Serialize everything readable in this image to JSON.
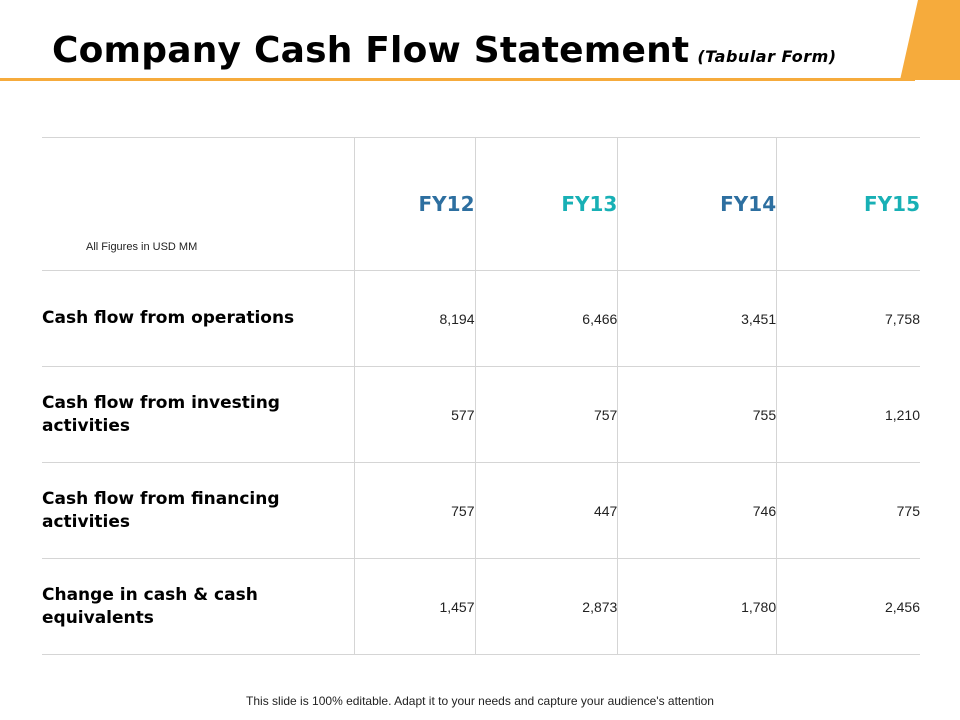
{
  "header": {
    "title": "Company Cash Flow Statement",
    "subtitle": "(Tabular Form)"
  },
  "table": {
    "note": "All Figures in USD MM",
    "columns": [
      "FY12",
      "FY13",
      "FY14",
      "FY15"
    ],
    "rows": [
      {
        "label": "Cash flow from operations",
        "values": [
          "8,194",
          "6,466",
          "3,451",
          "7,758"
        ]
      },
      {
        "label": "Cash flow from investing activities",
        "values": [
          "577",
          "757",
          "755",
          "1,210"
        ]
      },
      {
        "label": "Cash flow from financing activities",
        "values": [
          "757",
          "447",
          "746",
          "775"
        ]
      },
      {
        "label": "Change in cash & cash equivalents",
        "values": [
          "1,457",
          "2,873",
          "1,780",
          "2,456"
        ]
      }
    ]
  },
  "footer": {
    "text": "This slide is 100% editable. Adapt it to your needs and capture your audience's attention"
  },
  "colors": {
    "accent": "#f6ab3c",
    "fy_dark": "#2d6fa0",
    "fy_teal": "#18b0b5"
  }
}
